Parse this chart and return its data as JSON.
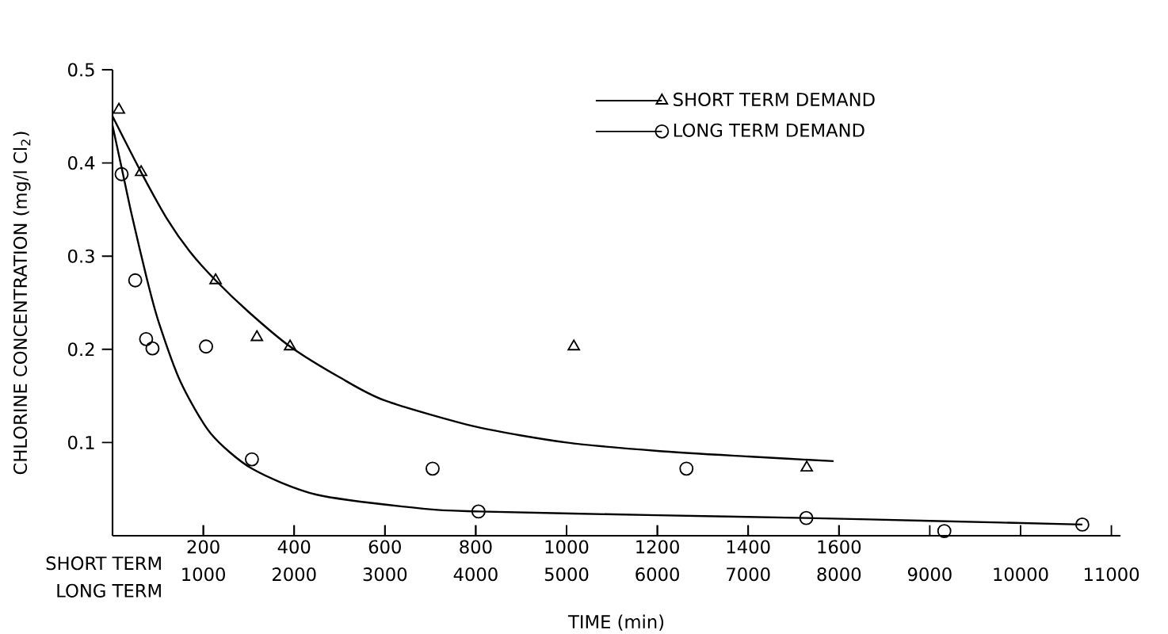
{
  "chart_data": {
    "type": "scatter",
    "xlabel": "TIME (min)",
    "ylabel": "CHLORINE CONCENTRATION (mg/l Cl$_{2}$)",
    "annotations": [
      "SHORT TERM",
      "LONG TERM"
    ],
    "xlim": [
      0,
      2220
    ],
    "xticks": [
      200,
      400,
      600,
      800,
      1000,
      1200,
      1400,
      1600
    ],
    "x2lim": [
      0,
      11100
    ],
    "x2ticks": [
      1000,
      2000,
      3000,
      4000,
      5000,
      6000,
      7000,
      8000,
      9000,
      10000,
      11000
    ],
    "ylim": [
      0,
      0.5
    ],
    "yticks": [
      0.1,
      0.2,
      0.3,
      0.4,
      0.5
    ],
    "legend": "top",
    "series": [
      {
        "name": "SHORT TERM DEMAND",
        "type": "scatter",
        "marker": "triangle",
        "color": "#000000",
        "x": [
          14,
          63,
          227,
          318,
          391,
          1016,
          1529
        ],
        "values": [
          0.457,
          0.39,
          0.274,
          0.213,
          0.203,
          0.203,
          0.073
        ]
      },
      {
        "name": "LONG TERM DEMAND",
        "type": "scatter",
        "marker": "circle",
        "axis": "x2",
        "color": "#000000",
        "x": [
          100,
          250,
          370,
          440,
          1030,
          1535,
          3525,
          4030,
          6320,
          7640,
          9160,
          10680
        ],
        "values": [
          0.388,
          0.274,
          0.211,
          0.201,
          0.203,
          0.082,
          0.072,
          0.026,
          0.072,
          0.019,
          0.005,
          0.012
        ]
      },
      {
        "type": "line",
        "color": "#000000",
        "x": [
          0,
          63,
          120,
          170,
          227,
          300,
          391,
          500,
          600,
          800,
          1000,
          1200,
          1400,
          1588
        ],
        "values": [
          0.45,
          0.39,
          0.34,
          0.305,
          0.274,
          0.24,
          0.203,
          0.17,
          0.145,
          0.117,
          0.1,
          0.091,
          0.085,
          0.08
        ]
      },
      {
        "type": "line",
        "axis": "x2",
        "color": "#000000",
        "x": [
          0,
          100,
          210,
          380,
          506,
          750,
          1080,
          1535,
          2250,
          3420,
          4030,
          6000,
          7640,
          9000,
          10680
        ],
        "values": [
          0.44,
          0.395,
          0.345,
          0.275,
          0.23,
          0.165,
          0.11,
          0.072,
          0.044,
          0.029,
          0.026,
          0.022,
          0.019,
          0.016,
          0.012
        ]
      }
    ]
  }
}
